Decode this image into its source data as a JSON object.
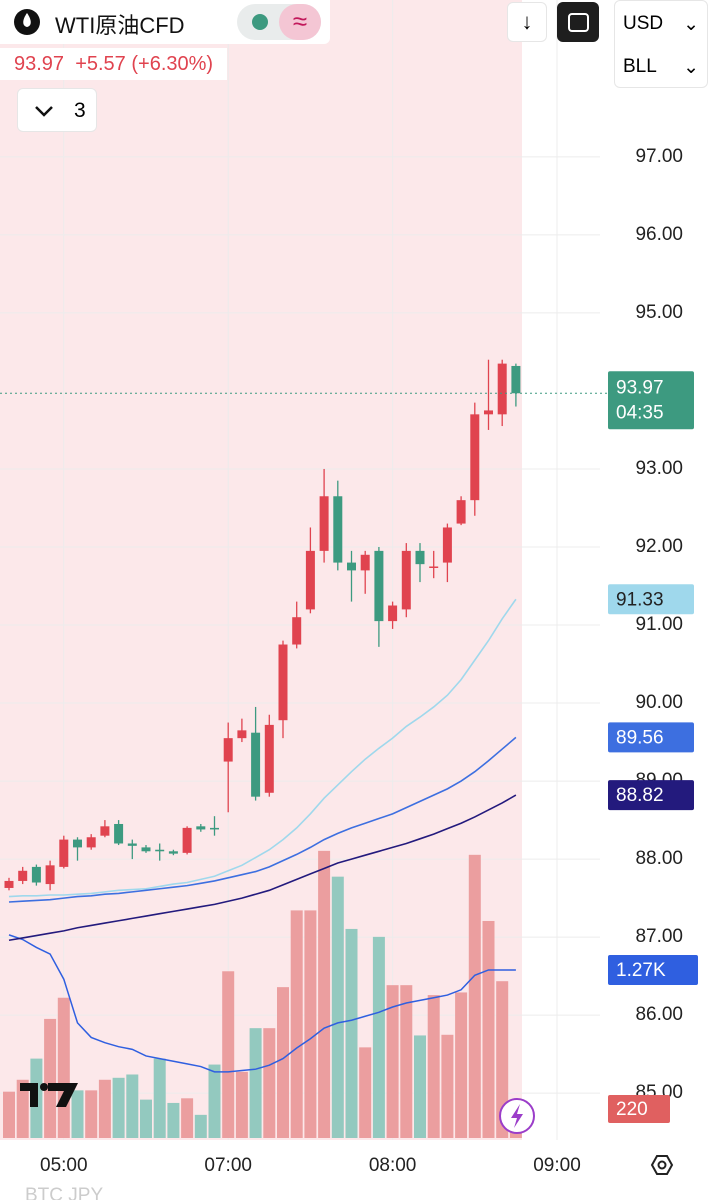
{
  "header": {
    "symbol": "WTI原油CFD",
    "last": "93.97",
    "change": "+5.57",
    "change_pct": "(+6.30%)",
    "indicators_count": "3",
    "currency": "USD",
    "unit": "BLL",
    "footer_hint": "BTC JPY"
  },
  "chart_data": {
    "type": "candlestick",
    "categories": [
      null,
      null,
      null,
      null,
      "05:00",
      null,
      null,
      null,
      null,
      null,
      null,
      null,
      null,
      null,
      null,
      null,
      "07:00",
      null,
      null,
      null,
      null,
      null,
      null,
      null,
      null,
      null,
      null,
      null,
      "08:00",
      null,
      null,
      null,
      null,
      null,
      null,
      null,
      null,
      null,
      null,
      null,
      "09:00"
    ],
    "ylim": [
      84.4,
      99.01
    ],
    "yticks": [
      {
        "value": 85,
        "label": "85.00"
      },
      {
        "value": 86,
        "label": "86.00"
      },
      {
        "value": 87,
        "label": "87.00"
      },
      {
        "value": 88,
        "label": "88.00"
      },
      {
        "value": 89,
        "label": "89.00"
      },
      {
        "value": 90,
        "label": "90.00"
      },
      {
        "value": 91,
        "label": "91.00"
      },
      {
        "value": 92,
        "label": "92.00"
      },
      {
        "value": 93,
        "label": "93.00"
      },
      {
        "value": 95,
        "label": "95.00"
      },
      {
        "value": 96,
        "label": "96.00"
      },
      {
        "value": 97,
        "label": "97.00"
      }
    ],
    "grid": true,
    "up_color": "#e0434f",
    "down_color": "#3d9a80",
    "countdown": "04:35",
    "open": [
      87.63,
      87.72,
      87.9,
      87.68,
      87.9,
      88.25,
      88.15,
      88.3,
      88.45,
      88.2,
      88.15,
      88.12,
      88.1,
      88.08,
      88.42,
      88.4,
      89.25,
      89.55,
      89.62,
      88.85,
      89.78,
      90.75,
      91.2,
      91.95,
      92.65,
      91.8,
      91.7,
      91.95,
      91.05,
      91.2,
      91.95,
      91.75,
      91.8,
      92.3,
      92.6,
      93.7,
      93.7,
      94.32,
      null,
      null,
      null
    ],
    "high": [
      87.76,
      87.9,
      87.93,
      87.98,
      88.3,
      88.28,
      88.32,
      88.5,
      88.5,
      88.25,
      88.18,
      88.2,
      88.12,
      88.42,
      88.45,
      88.55,
      89.75,
      89.8,
      89.95,
      89.85,
      90.8,
      91.3,
      92.25,
      93.0,
      92.85,
      91.95,
      91.95,
      92.0,
      91.3,
      92.05,
      92.05,
      91.95,
      92.3,
      92.65,
      93.85,
      94.4,
      94.4,
      94.35,
      null,
      null,
      null
    ],
    "low": [
      87.6,
      87.68,
      87.66,
      87.6,
      87.88,
      87.98,
      88.12,
      88.28,
      88.18,
      88.0,
      88.08,
      87.98,
      88.05,
      88.06,
      88.35,
      88.3,
      88.6,
      89.5,
      88.75,
      88.8,
      89.55,
      90.7,
      91.15,
      91.8,
      91.7,
      91.3,
      91.4,
      90.72,
      90.95,
      91.1,
      91.55,
      91.6,
      91.55,
      92.28,
      92.4,
      93.5,
      93.55,
      93.8,
      null,
      null,
      null
    ],
    "close": [
      87.72,
      87.85,
      87.7,
      87.92,
      88.25,
      88.15,
      88.28,
      88.42,
      88.2,
      88.17,
      88.1,
      88.1,
      88.07,
      88.4,
      88.38,
      88.38,
      89.55,
      89.65,
      88.8,
      89.72,
      90.75,
      91.1,
      91.95,
      92.65,
      91.8,
      91.7,
      91.9,
      91.05,
      91.25,
      91.95,
      91.78,
      91.75,
      92.25,
      92.6,
      93.7,
      93.75,
      94.35,
      93.97,
      null,
      null,
      null
    ],
    "series": [
      {
        "color": "#9fd8ec",
        "values": [
          87.52,
          87.53,
          87.53,
          87.54,
          87.54,
          87.55,
          87.56,
          87.58,
          87.6,
          87.61,
          87.62,
          87.65,
          87.68,
          87.7,
          87.74,
          87.78,
          87.85,
          87.92,
          88.02,
          88.12,
          88.25,
          88.4,
          88.58,
          88.78,
          88.95,
          89.12,
          89.28,
          89.42,
          89.55,
          89.7,
          89.82,
          89.95,
          90.1,
          90.3,
          90.55,
          90.8,
          91.08,
          91.33,
          null,
          null,
          null
        ]
      },
      {
        "color": "#3d6fe0",
        "values": [
          87.45,
          87.46,
          87.47,
          87.48,
          87.5,
          87.52,
          87.53,
          87.55,
          87.56,
          87.58,
          87.6,
          87.62,
          87.64,
          87.66,
          87.69,
          87.72,
          87.76,
          87.8,
          87.84,
          87.9,
          87.98,
          88.06,
          88.15,
          88.25,
          88.33,
          88.4,
          88.46,
          88.52,
          88.58,
          88.66,
          88.74,
          88.82,
          88.9,
          89.0,
          89.12,
          89.26,
          89.41,
          89.56,
          null,
          null,
          null
        ]
      },
      {
        "color": "#231a7d",
        "values": [
          86.96,
          86.99,
          87.02,
          87.05,
          87.08,
          87.12,
          87.15,
          87.18,
          87.21,
          87.24,
          87.27,
          87.3,
          87.33,
          87.36,
          87.39,
          87.42,
          87.46,
          87.5,
          87.55,
          87.6,
          87.67,
          87.74,
          87.81,
          87.88,
          87.95,
          88.0,
          88.05,
          88.1,
          88.15,
          88.2,
          88.26,
          88.32,
          88.39,
          88.46,
          88.54,
          88.63,
          88.72,
          88.82,
          null,
          null,
          null
        ]
      }
    ],
    "volume": {
      "lim": [
        0,
        8600
      ],
      "up_color": "#eb9e9f",
      "down_color": "#93c9bf",
      "values": [
        350,
        440,
        600,
        900,
        1060,
        360,
        360,
        440,
        455,
        480,
        290,
        600,
        265,
        300,
        175,
        555,
        1260,
        500,
        830,
        830,
        1140,
        1720,
        1720,
        2170,
        1975,
        1580,
        685,
        1520,
        1155,
        1155,
        775,
        1080,
        780,
        1100,
        2140,
        1640,
        1185,
        220,
        null,
        null,
        null
      ],
      "ma": {
        "color": "#2f5fe0",
        "values": [
          1535,
          1500,
          1440,
          1390,
          1200,
          870,
          760,
          720,
          690,
          670,
          620,
          600,
          580,
          560,
          540,
          500,
          500,
          510,
          520,
          550,
          600,
          680,
          750,
          830,
          870,
          890,
          920,
          950,
          990,
          1020,
          1040,
          1060,
          1080,
          1120,
          1230,
          1270,
          1270,
          1270,
          null,
          null,
          null
        ],
        "value_labels": [
          null,
          null,
          null,
          null,
          null,
          null,
          null,
          null,
          null,
          null,
          null,
          null,
          null,
          null,
          null,
          null,
          null,
          null,
          null,
          null,
          null,
          null,
          null,
          null,
          null,
          null,
          null,
          null,
          null,
          null,
          null,
          null,
          null,
          null,
          null,
          null,
          null,
          "1.27K",
          null,
          null,
          null
        ]
      }
    }
  }
}
